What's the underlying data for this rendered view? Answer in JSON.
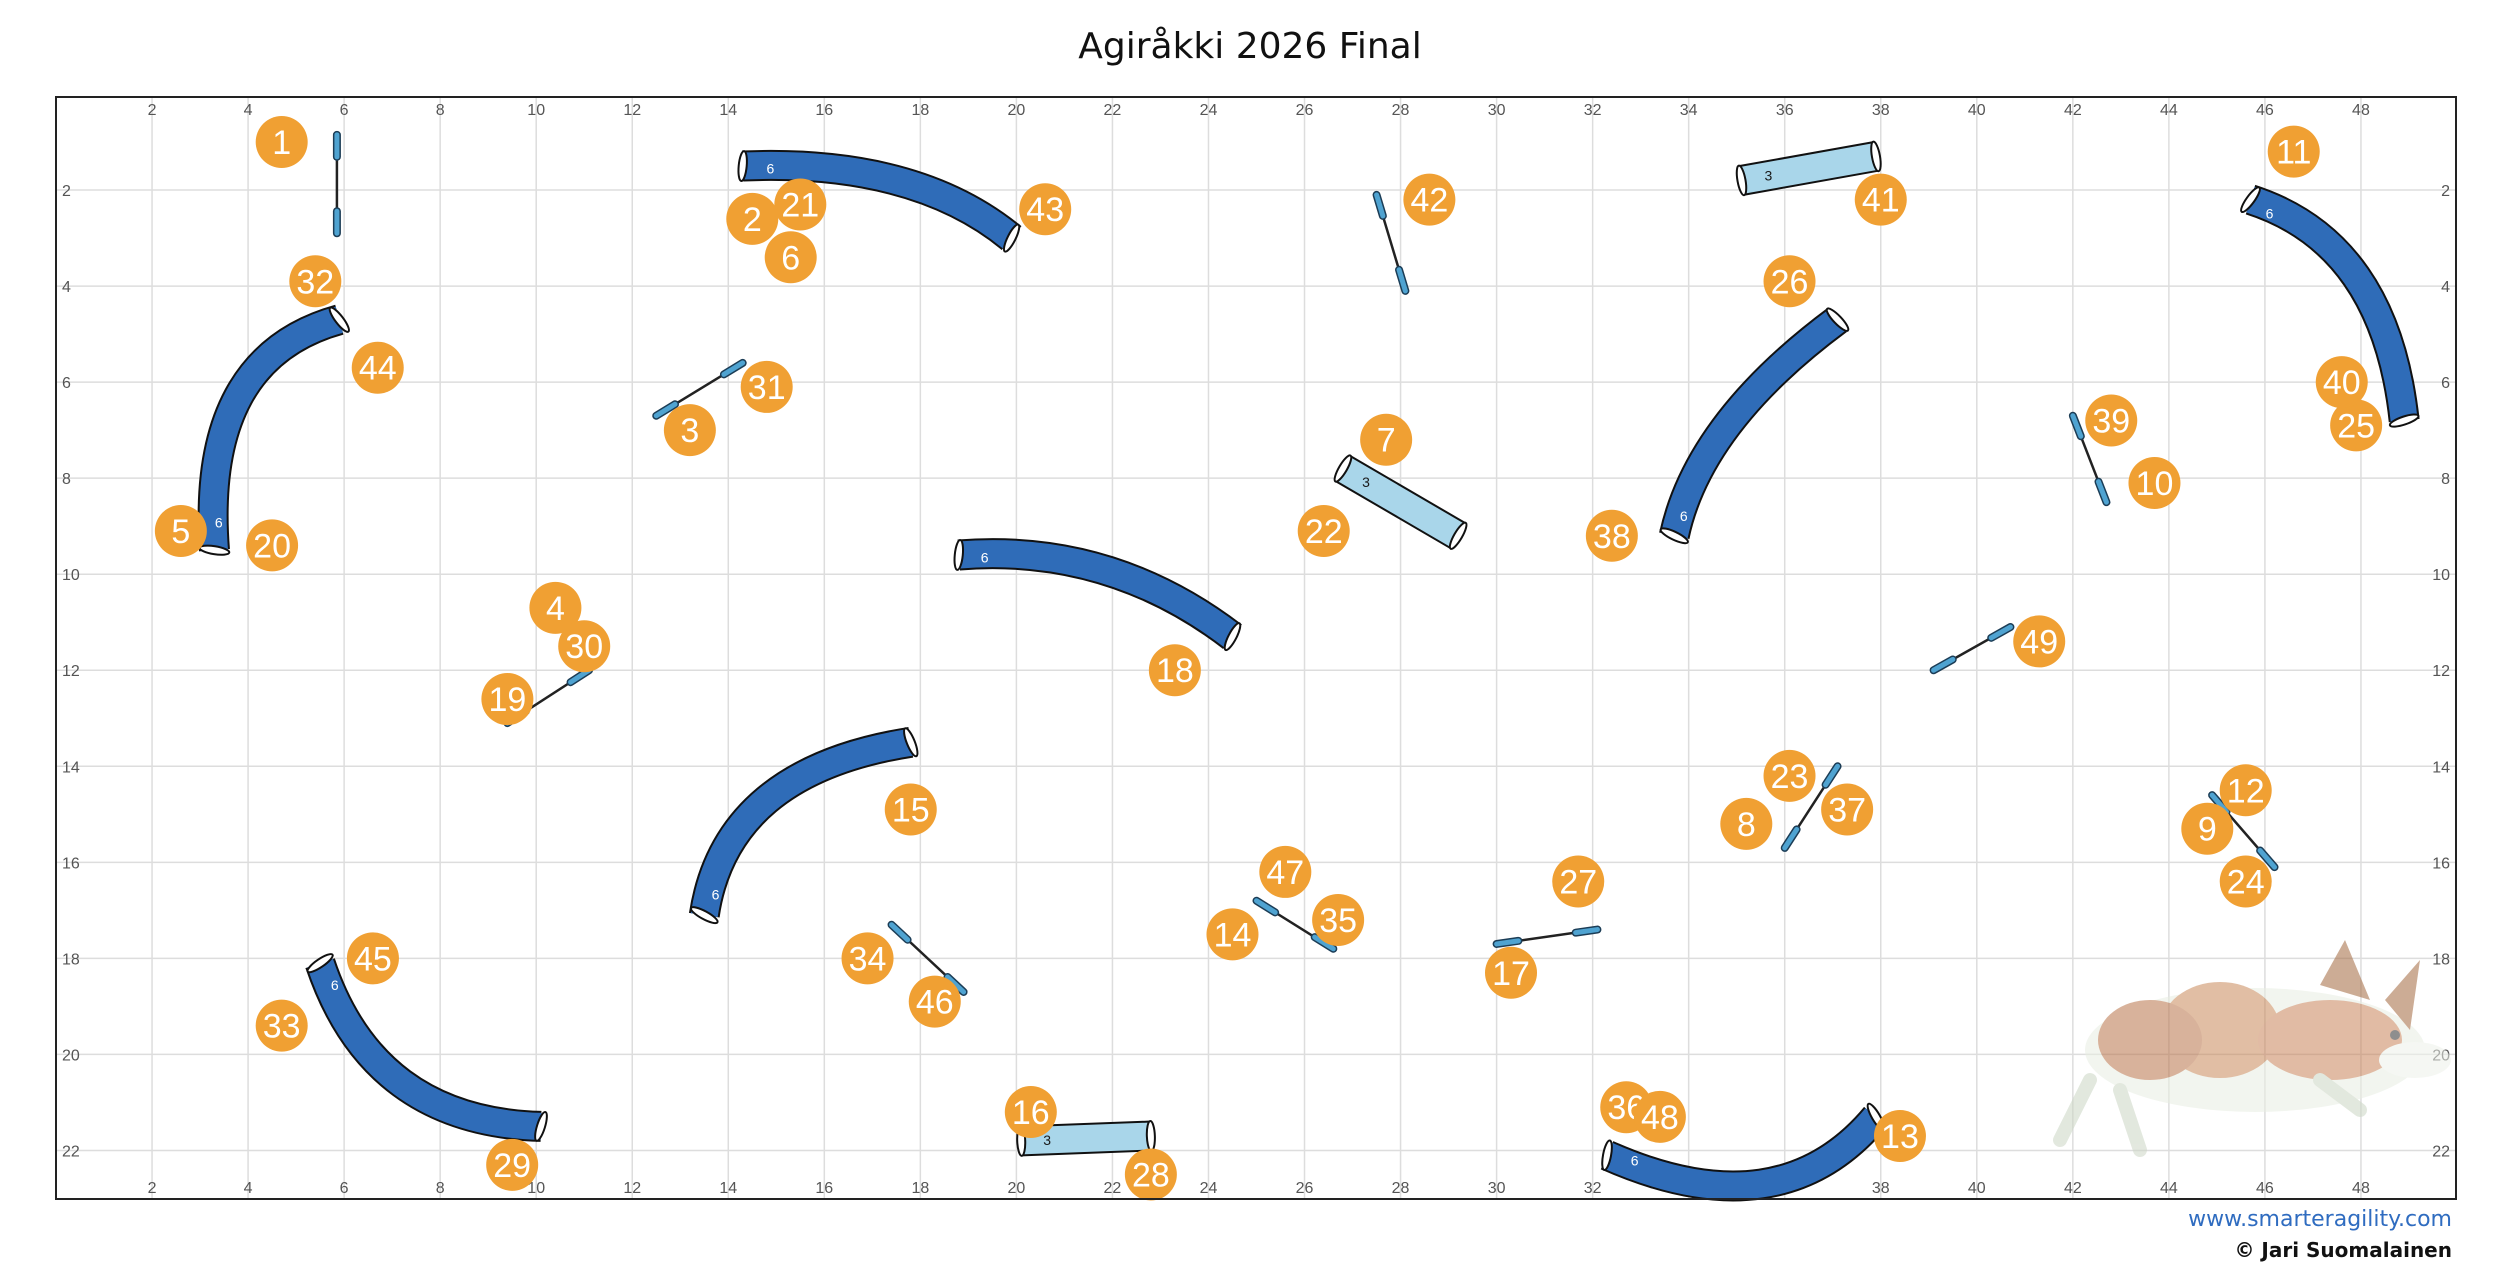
{
  "title": "Agiråkki 2026 Final",
  "footer": {
    "website": "www.smarteragility.com",
    "copyright": "© Jari Suomalainen"
  },
  "colors": {
    "tunnel_long": "#2f6cb8",
    "tunnel_short": "#a9d6ea",
    "jump_bar": "#4fa3d1",
    "number_badge": "#f0a033",
    "grid": "#dddddd"
  },
  "grid": {
    "x_ticks": [
      "2",
      "4",
      "6",
      "8",
      "10",
      "12",
      "14",
      "16",
      "18",
      "20",
      "22",
      "24",
      "26",
      "28",
      "30",
      "32",
      "34",
      "36",
      "38",
      "40",
      "42",
      "44",
      "46",
      "48"
    ],
    "y_ticks": [
      "2",
      "4",
      "6",
      "8",
      "10",
      "12",
      "14",
      "16",
      "18",
      "20",
      "22"
    ]
  },
  "tunnels": [
    {
      "type": "curved",
      "label": "6",
      "path": [
        [
          14.3,
          1.5
        ],
        [
          17.5,
          1.8
        ],
        [
          19.9,
          3.0
        ]
      ]
    },
    {
      "type": "curved",
      "label": "6",
      "path": [
        [
          3.3,
          9.5
        ],
        [
          3.8,
          6.3
        ],
        [
          5.9,
          4.7
        ]
      ]
    },
    {
      "type": "curved",
      "label": "6",
      "path": [
        [
          18.8,
          9.6
        ],
        [
          21.8,
          9.9
        ],
        [
          24.5,
          11.3
        ]
      ]
    },
    {
      "type": "curved",
      "label": "6",
      "path": [
        [
          13.5,
          17.1
        ],
        [
          14.8,
          14.7
        ],
        [
          17.8,
          13.5
        ]
      ]
    },
    {
      "type": "curved",
      "label": "6",
      "path": [
        [
          5.5,
          18.1
        ],
        [
          7.2,
          20.6
        ],
        [
          10.1,
          21.5
        ]
      ]
    },
    {
      "type": "curved",
      "label": "6",
      "path": [
        [
          33.7,
          9.2
        ],
        [
          34.8,
          6.9
        ],
        [
          37.1,
          4.7
        ]
      ]
    },
    {
      "type": "curved",
      "label": "6",
      "path": [
        [
          45.7,
          2.2
        ],
        [
          47.9,
          3.8
        ],
        [
          48.9,
          6.8
        ]
      ]
    },
    {
      "type": "curved",
      "label": "6",
      "path": [
        [
          32.3,
          22.1
        ],
        [
          35.5,
          22.7
        ],
        [
          37.9,
          21.3
        ]
      ]
    },
    {
      "type": "straight",
      "label": "3",
      "path": [
        [
          35.1,
          1.8
        ],
        [
          37.9,
          1.3
        ]
      ]
    },
    {
      "type": "straight",
      "label": "3",
      "path": [
        [
          26.8,
          7.8
        ],
        [
          29.2,
          9.2
        ]
      ]
    },
    {
      "type": "straight",
      "label": "3",
      "path": [
        [
          20.1,
          21.8
        ],
        [
          22.8,
          21.7
        ]
      ]
    }
  ],
  "jumps": [
    [
      [
        5.85,
        0.85
      ],
      [
        5.85,
        2.9
      ]
    ],
    [
      [
        12.5,
        6.7
      ],
      [
        14.3,
        5.6
      ]
    ],
    [
      [
        9.4,
        13.1
      ],
      [
        11.1,
        12.0
      ]
    ],
    [
      [
        27.5,
        2.1
      ],
      [
        28.1,
        4.1
      ]
    ],
    [
      [
        17.4,
        17.3
      ],
      [
        18.9,
        18.7
      ]
    ],
    [
      [
        25.0,
        16.8
      ],
      [
        26.6,
        17.8
      ]
    ],
    [
      [
        30.0,
        17.7
      ],
      [
        32.1,
        17.4
      ]
    ],
    [
      [
        36.0,
        15.7
      ],
      [
        37.1,
        14.0
      ]
    ],
    [
      [
        39.1,
        12.0
      ],
      [
        40.7,
        11.1
      ]
    ],
    [
      [
        42.0,
        6.7
      ],
      [
        42.7,
        8.5
      ]
    ],
    [
      [
        44.9,
        14.6
      ],
      [
        46.2,
        16.1
      ]
    ]
  ],
  "numbers": [
    {
      "n": "1",
      "at": [
        4.7,
        1.0
      ]
    },
    {
      "n": "2",
      "at": [
        14.5,
        2.6
      ]
    },
    {
      "n": "3",
      "at": [
        13.2,
        7.0
      ]
    },
    {
      "n": "4",
      "at": [
        10.4,
        10.7
      ]
    },
    {
      "n": "5",
      "at": [
        2.6,
        9.1
      ]
    },
    {
      "n": "6",
      "at": [
        15.3,
        3.4
      ]
    },
    {
      "n": "7",
      "at": [
        27.7,
        7.2
      ]
    },
    {
      "n": "8",
      "at": [
        35.2,
        15.2
      ]
    },
    {
      "n": "9",
      "at": [
        44.8,
        15.3
      ]
    },
    {
      "n": "10",
      "at": [
        43.7,
        8.1
      ]
    },
    {
      "n": "11",
      "at": [
        46.6,
        1.2
      ]
    },
    {
      "n": "12",
      "at": [
        45.6,
        14.5
      ]
    },
    {
      "n": "13",
      "at": [
        38.4,
        21.7
      ]
    },
    {
      "n": "14",
      "at": [
        24.5,
        17.5
      ]
    },
    {
      "n": "15",
      "at": [
        17.8,
        14.9
      ]
    },
    {
      "n": "16",
      "at": [
        20.3,
        21.2
      ]
    },
    {
      "n": "17",
      "at": [
        30.3,
        18.3
      ]
    },
    {
      "n": "18",
      "at": [
        23.3,
        12.0
      ]
    },
    {
      "n": "19",
      "at": [
        9.4,
        12.6
      ]
    },
    {
      "n": "20",
      "at": [
        4.5,
        9.4
      ]
    },
    {
      "n": "21",
      "at": [
        15.5,
        2.3
      ]
    },
    {
      "n": "22",
      "at": [
        26.4,
        9.1
      ]
    },
    {
      "n": "23",
      "at": [
        36.1,
        14.2
      ]
    },
    {
      "n": "24",
      "at": [
        45.6,
        16.4
      ]
    },
    {
      "n": "25",
      "at": [
        47.9,
        6.9
      ]
    },
    {
      "n": "26",
      "at": [
        36.1,
        3.9
      ]
    },
    {
      "n": "27",
      "at": [
        31.7,
        16.4
      ]
    },
    {
      "n": "28",
      "at": [
        22.8,
        22.5
      ]
    },
    {
      "n": "29",
      "at": [
        9.5,
        22.3
      ]
    },
    {
      "n": "30",
      "at": [
        11.0,
        11.5
      ]
    },
    {
      "n": "31",
      "at": [
        14.8,
        6.1
      ]
    },
    {
      "n": "32",
      "at": [
        5.4,
        3.9
      ]
    },
    {
      "n": "33",
      "at": [
        4.7,
        19.4
      ]
    },
    {
      "n": "34",
      "at": [
        16.9,
        18.0
      ]
    },
    {
      "n": "35",
      "at": [
        26.7,
        17.2
      ]
    },
    {
      "n": "36",
      "at": [
        32.7,
        21.1
      ]
    },
    {
      "n": "37",
      "at": [
        37.3,
        14.9
      ]
    },
    {
      "n": "38",
      "at": [
        32.4,
        9.2
      ]
    },
    {
      "n": "39",
      "at": [
        42.8,
        6.8
      ]
    },
    {
      "n": "40",
      "at": [
        47.6,
        6.0
      ]
    },
    {
      "n": "41",
      "at": [
        38.0,
        2.2
      ]
    },
    {
      "n": "42",
      "at": [
        28.6,
        2.2
      ]
    },
    {
      "n": "43",
      "at": [
        20.6,
        2.4
      ]
    },
    {
      "n": "44",
      "at": [
        6.7,
        5.7
      ]
    },
    {
      "n": "45",
      "at": [
        6.6,
        18.0
      ]
    },
    {
      "n": "46",
      "at": [
        18.3,
        18.9
      ]
    },
    {
      "n": "47",
      "at": [
        25.6,
        16.2
      ]
    },
    {
      "n": "48",
      "at": [
        33.4,
        21.3
      ]
    },
    {
      "n": "49",
      "at": [
        41.3,
        11.4
      ]
    }
  ]
}
